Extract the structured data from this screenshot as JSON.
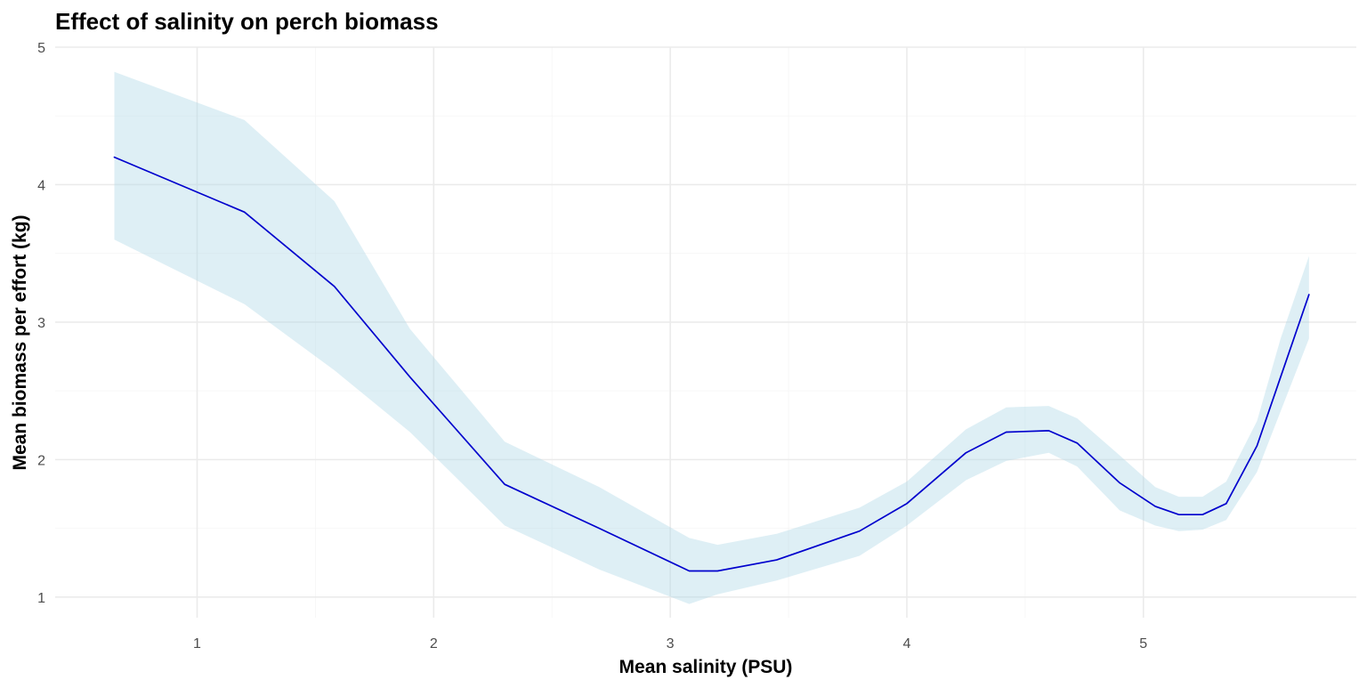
{
  "chart_data": {
    "type": "line",
    "title": "Effect of salinity on perch biomass",
    "xlabel": "Mean salinity (PSU)",
    "ylabel": "Mean biomass per effort (kg)",
    "xlim": [
      0.4,
      5.9
    ],
    "ylim": [
      0.85,
      5.0
    ],
    "xticks": [
      1,
      2,
      3,
      4,
      5
    ],
    "yticks": [
      1,
      2,
      3,
      4,
      5
    ],
    "xtick_labels": [
      "1",
      "2",
      "3",
      "4",
      "5"
    ],
    "ytick_labels": [
      "1",
      "2",
      "3",
      "4",
      "5"
    ],
    "grid": true,
    "line_color": "#0000cd",
    "ribbon_color": "#add8e6",
    "series": [
      {
        "x": [
          0.65,
          1.2,
          1.58,
          1.9,
          2.3,
          2.7,
          3.08,
          3.2,
          3.45,
          3.8,
          4.0,
          4.25,
          4.42,
          4.6,
          4.72,
          4.9,
          5.05,
          5.15,
          5.25,
          5.35,
          5.48,
          5.58,
          5.7
        ],
        "y": [
          4.2,
          3.8,
          3.26,
          2.6,
          1.82,
          1.5,
          1.19,
          1.19,
          1.27,
          1.48,
          1.68,
          2.05,
          2.2,
          2.21,
          2.12,
          1.83,
          1.66,
          1.6,
          1.6,
          1.68,
          2.1,
          2.6,
          3.2
        ],
        "lower": [
          3.6,
          3.13,
          2.65,
          2.2,
          1.52,
          1.2,
          0.95,
          1.02,
          1.12,
          1.3,
          1.52,
          1.85,
          1.99,
          2.05,
          1.95,
          1.63,
          1.52,
          1.48,
          1.49,
          1.56,
          1.91,
          2.35,
          2.88
        ],
        "upper": [
          4.82,
          4.47,
          3.88,
          2.95,
          2.13,
          1.8,
          1.43,
          1.38,
          1.46,
          1.65,
          1.84,
          2.22,
          2.38,
          2.39,
          2.3,
          2.03,
          1.8,
          1.73,
          1.73,
          1.84,
          2.28,
          2.88,
          3.48
        ]
      }
    ]
  }
}
